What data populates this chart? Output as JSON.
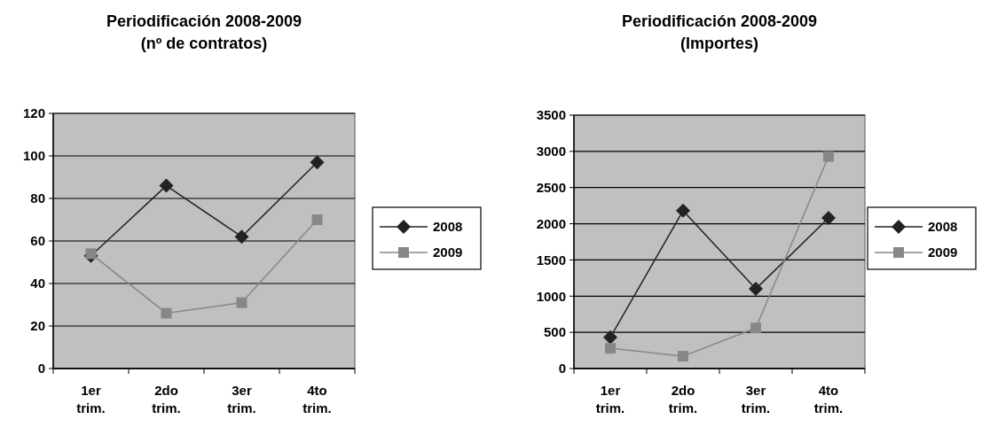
{
  "chart_data": [
    {
      "type": "line",
      "title": "Periodificación 2008-2009\n(nº de contratos)",
      "categories": [
        "1er\ntrim.",
        "2do\ntrim.",
        "3er\ntrim.",
        "4to\ntrim."
      ],
      "ylim": [
        0,
        120
      ],
      "yticks": [
        0,
        20,
        40,
        60,
        80,
        100,
        120
      ],
      "grid": "y",
      "legend": "right",
      "series": [
        {
          "name": "2008",
          "color": "#222222",
          "marker": "diamond",
          "values": [
            53,
            86,
            62,
            97
          ]
        },
        {
          "name": "2009",
          "color": "#878787",
          "marker": "square",
          "values": [
            54,
            26,
            31,
            70
          ]
        }
      ]
    },
    {
      "type": "line",
      "title": "Periodificación 2008-2009\n(Importes)",
      "categories": [
        "1er\ntrim.",
        "2do\ntrim.",
        "3er\ntrim.",
        "4to\ntrim."
      ],
      "ylim": [
        0,
        3500
      ],
      "yticks": [
        0,
        500,
        1000,
        1500,
        2000,
        2500,
        3000,
        3500
      ],
      "grid": "y",
      "legend": "right",
      "series": [
        {
          "name": "2008",
          "color": "#222222",
          "marker": "diamond",
          "values": [
            430,
            2180,
            1100,
            2080
          ]
        },
        {
          "name": "2009",
          "color": "#878787",
          "marker": "square",
          "values": [
            280,
            170,
            560,
            2930
          ]
        }
      ]
    }
  ]
}
